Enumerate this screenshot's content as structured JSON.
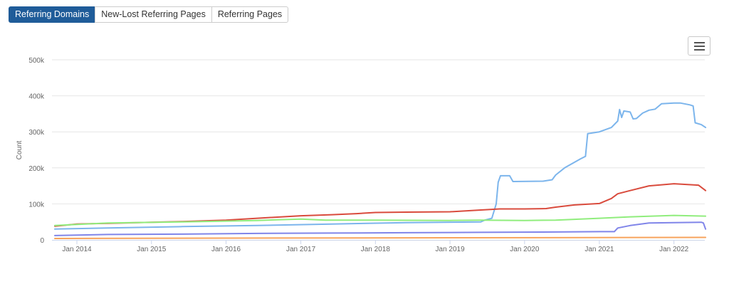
{
  "tabs": [
    {
      "label": "Referring Domains",
      "active": true
    },
    {
      "label": "New-Lost Referring Pages",
      "active": false
    },
    {
      "label": "Referring Pages",
      "active": false
    }
  ],
  "menu": {
    "icon": "hamburger-menu-icon"
  },
  "chart_data": {
    "type": "line",
    "title": "",
    "xlabel": "",
    "ylabel": "Count",
    "ylim": [
      0,
      500000
    ],
    "xlim": [
      "2013-09-01",
      "2022-06-01"
    ],
    "grid": true,
    "legend": "none",
    "y_ticks": [
      {
        "value": 0,
        "label": "0"
      },
      {
        "value": 100000,
        "label": "100k"
      },
      {
        "value": 200000,
        "label": "200k"
      },
      {
        "value": 300000,
        "label": "300k"
      },
      {
        "value": 400000,
        "label": "400k"
      },
      {
        "value": 500000,
        "label": "500k"
      }
    ],
    "x_ticks": [
      {
        "value": "2014-01-01",
        "label": "Jan 2014"
      },
      {
        "value": "2015-01-01",
        "label": "Jan 2015"
      },
      {
        "value": "2016-01-01",
        "label": "Jan 2016"
      },
      {
        "value": "2017-01-01",
        "label": "Jan 2017"
      },
      {
        "value": "2018-01-01",
        "label": "Jan 2018"
      },
      {
        "value": "2019-01-01",
        "label": "Jan 2019"
      },
      {
        "value": "2020-01-01",
        "label": "Jan 2020"
      },
      {
        "value": "2021-01-01",
        "label": "Jan 2021"
      },
      {
        "value": "2022-01-01",
        "label": "Jan 2022"
      }
    ],
    "series": [
      {
        "color": "#7cb5ec",
        "points": [
          [
            "2013-09-15",
            30000
          ],
          [
            "2014-06-01",
            33000
          ],
          [
            "2015-06-01",
            37000
          ],
          [
            "2016-06-01",
            40000
          ],
          [
            "2017-06-01",
            44000
          ],
          [
            "2018-06-01",
            48000
          ],
          [
            "2019-06-01",
            50000
          ],
          [
            "2019-06-20",
            55000
          ],
          [
            "2019-07-25",
            60000
          ],
          [
            "2019-08-15",
            100000
          ],
          [
            "2019-08-25",
            160000
          ],
          [
            "2019-09-05",
            178000
          ],
          [
            "2019-10-20",
            178000
          ],
          [
            "2019-11-05",
            162000
          ],
          [
            "2020-04-01",
            163000
          ],
          [
            "2020-05-15",
            167000
          ],
          [
            "2020-06-01",
            180000
          ],
          [
            "2020-07-15",
            200000
          ],
          [
            "2020-10-01",
            225000
          ],
          [
            "2020-10-25",
            232000
          ],
          [
            "2020-11-05",
            295000
          ],
          [
            "2021-01-01",
            300000
          ],
          [
            "2021-03-01",
            312000
          ],
          [
            "2021-04-01",
            330000
          ],
          [
            "2021-04-10",
            362000
          ],
          [
            "2021-04-20",
            340000
          ],
          [
            "2021-05-01",
            358000
          ],
          [
            "2021-06-01",
            355000
          ],
          [
            "2021-06-15",
            336000
          ],
          [
            "2021-07-01",
            337000
          ],
          [
            "2021-08-01",
            352000
          ],
          [
            "2021-09-01",
            360000
          ],
          [
            "2021-10-01",
            363000
          ],
          [
            "2021-11-01",
            378000
          ],
          [
            "2022-01-01",
            380000
          ],
          [
            "2022-02-01",
            380000
          ],
          [
            "2022-03-20",
            375000
          ],
          [
            "2022-04-05",
            372000
          ],
          [
            "2022-04-15",
            325000
          ],
          [
            "2022-05-15",
            320000
          ],
          [
            "2022-06-05",
            312000
          ]
        ]
      },
      {
        "color": "#d94b3d",
        "points": [
          [
            "2013-09-15",
            38000
          ],
          [
            "2014-01-01",
            44000
          ],
          [
            "2014-06-01",
            46000
          ],
          [
            "2015-01-01",
            49000
          ],
          [
            "2015-06-01",
            51000
          ],
          [
            "2016-01-01",
            55000
          ],
          [
            "2016-06-01",
            60000
          ],
          [
            "2017-01-01",
            67000
          ],
          [
            "2017-06-01",
            70000
          ],
          [
            "2017-10-01",
            73000
          ],
          [
            "2018-01-01",
            76000
          ],
          [
            "2018-06-01",
            77000
          ],
          [
            "2019-01-01",
            78000
          ],
          [
            "2019-06-01",
            83000
          ],
          [
            "2019-09-01",
            86000
          ],
          [
            "2020-01-01",
            86000
          ],
          [
            "2020-04-15",
            87000
          ],
          [
            "2020-06-01",
            91000
          ],
          [
            "2020-09-01",
            97000
          ],
          [
            "2021-01-01",
            101000
          ],
          [
            "2021-03-01",
            115000
          ],
          [
            "2021-04-01",
            128000
          ],
          [
            "2021-06-01",
            137000
          ],
          [
            "2021-09-01",
            150000
          ],
          [
            "2022-01-01",
            156000
          ],
          [
            "2022-05-01",
            152000
          ],
          [
            "2022-06-05",
            137000
          ]
        ]
      },
      {
        "color": "#90ed7d",
        "points": [
          [
            "2013-09-15",
            40000
          ],
          [
            "2014-06-01",
            47000
          ],
          [
            "2015-06-01",
            50000
          ],
          [
            "2016-06-01",
            54000
          ],
          [
            "2017-01-01",
            58000
          ],
          [
            "2017-05-01",
            55000
          ],
          [
            "2018-01-01",
            55000
          ],
          [
            "2019-01-01",
            54000
          ],
          [
            "2019-06-01",
            55000
          ],
          [
            "2020-01-01",
            54000
          ],
          [
            "2020-06-01",
            55000
          ],
          [
            "2021-01-01",
            60000
          ],
          [
            "2021-06-01",
            64000
          ],
          [
            "2022-01-01",
            68000
          ],
          [
            "2022-06-05",
            66000
          ]
        ]
      },
      {
        "color": "#8085e9",
        "points": [
          [
            "2013-09-15",
            12000
          ],
          [
            "2014-06-01",
            15000
          ],
          [
            "2015-06-01",
            16000
          ],
          [
            "2016-06-01",
            18000
          ],
          [
            "2017-06-01",
            19000
          ],
          [
            "2018-06-01",
            20000
          ],
          [
            "2019-06-01",
            21000
          ],
          [
            "2020-06-01",
            22000
          ],
          [
            "2021-01-01",
            23000
          ],
          [
            "2021-03-15",
            23000
          ],
          [
            "2021-04-01",
            33000
          ],
          [
            "2021-06-01",
            40000
          ],
          [
            "2021-09-01",
            47000
          ],
          [
            "2022-01-01",
            48000
          ],
          [
            "2022-05-15",
            49000
          ],
          [
            "2022-05-25",
            47000
          ],
          [
            "2022-06-05",
            30000
          ]
        ]
      },
      {
        "color": "#f7a35c",
        "points": [
          [
            "2013-09-15",
            4000
          ],
          [
            "2016-01-01",
            5000
          ],
          [
            "2019-01-01",
            6000
          ],
          [
            "2022-06-05",
            7000
          ]
        ]
      }
    ]
  }
}
